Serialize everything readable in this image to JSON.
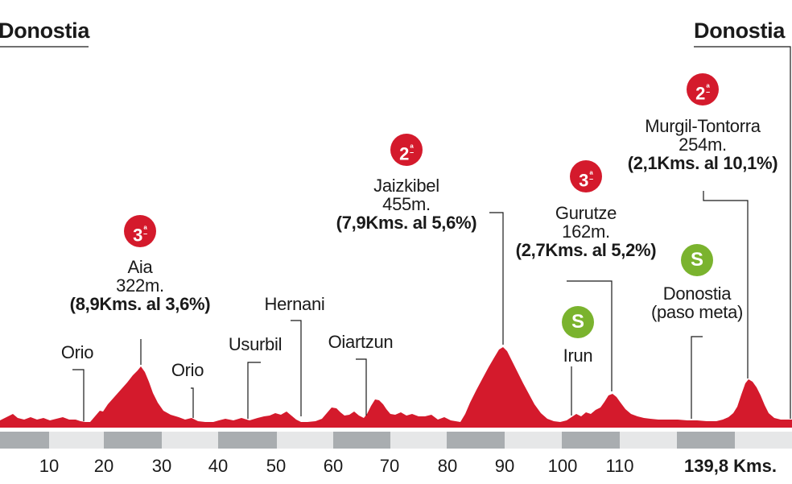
{
  "start_label": "Donostia",
  "finish_label": "Donostia",
  "climbs": [
    {
      "category": "3",
      "suffix": "ª",
      "name": "Aia",
      "altitude": "322m.",
      "detail": "(8,9Kms. al 3,6%)"
    },
    {
      "category": "2",
      "suffix": "ª",
      "name": "Jaizkibel",
      "altitude": "455m.",
      "detail": "(7,9Kms. al 5,6%)"
    },
    {
      "category": "3",
      "suffix": "ª",
      "name": "Gurutze",
      "altitude": "162m.",
      "detail": "(2,7Kms. al 5,2%)"
    },
    {
      "category": "2",
      "suffix": "ª",
      "name": "Murgil-Tontorra",
      "altitude": "254m.",
      "detail": "(2,1Kms. al 10,1%)"
    }
  ],
  "sprints": [
    {
      "symbol": "S",
      "name": "Irun"
    },
    {
      "symbol": "S",
      "name": "Donostia",
      "note": "(paso meta)"
    }
  ],
  "towns": [
    "Orio",
    "Orio",
    "Usurbil",
    "Hernani",
    "Oiartzun"
  ],
  "km_ticks": [
    "10",
    "20",
    "30",
    "40",
    "50",
    "60",
    "70",
    "80",
    "90",
    "100",
    "110"
  ],
  "total_distance": "139,8 Kms.",
  "colors": {
    "profile": "#d41a2c",
    "category_badge": "#d41a2c",
    "sprint_badge": "#7ab32e",
    "axis_band": "#a9adb0"
  }
}
